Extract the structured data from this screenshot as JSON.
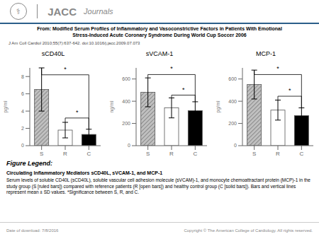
{
  "title": "From: Modified Serum Profiles of Inflammatory and Vasoconstrictive Factors in Patients With Emotional",
  "subtitle": "Stress-Induced Acute Coronary Syndrome During World Cup Soccer 2006",
  "color": "#2c5f8a",
  "annotations": [
    "J Am Coll Cardiol 2010;55(7):637-642. doi:10.1016/j.jacc.2009.07.073",
    "⚕",
    "JACC",
    "Journals",
    "Figure Legend:",
    "Circulating Inflammatory Mediators  sCD40L, sVCAM-1, and MCP-1",
    "Serum levels of soluble CD40L (sCD40L), soluble vascular cell adhesion molecule (sVCAM)-1, and monocyte chemoattractant protein (MCP)-1 in the study group (S [ruled bars]) compared with reference patients (R [open bars]) and healthy control group (C [solid bars]). Bars and vertical lines represent mean ± SD values. *Significance between S, R, and C.",
    "Date of download: 7/8/2016",
    "Copyright © The American College of Cardiology. All rights reserved."
  ],
  "chart_data": [
    {
      "type": "bar",
      "title": "sCD40L",
      "ylabel": "pg/ml",
      "categories": [
        "S",
        "R",
        "C"
      ],
      "values": [
        6.5,
        1.8,
        1.3
      ],
      "errors": [
        2.5,
        0.9,
        0.6
      ],
      "colors": [
        "#c0c0c0",
        "#ffffff",
        "#000000"
      ],
      "ylim": [
        0,
        9
      ],
      "yticks": [
        0,
        2,
        4,
        6,
        8
      ],
      "annotations": [
        {
          "x1": "S",
          "x2": "C",
          "y": 8.2,
          "label": "*"
        },
        {
          "x1": "R",
          "x2": "C",
          "y": 3.2,
          "label": "*"
        }
      ]
    },
    {
      "type": "bar",
      "title": "sVCAM-1",
      "ylabel": "ng/ml",
      "categories": [
        "S",
        "R",
        "C"
      ],
      "values": [
        480,
        340,
        315
      ],
      "errors": [
        130,
        90,
        80
      ],
      "colors": [
        "#c0c0c0",
        "#ffffff",
        "#000000"
      ],
      "ylim": [
        0,
        700
      ],
      "yticks": [
        0,
        200,
        400,
        600
      ],
      "annotations": [
        {
          "x1": "S",
          "x2": "C",
          "y": 640,
          "label": "*"
        },
        {
          "x1": "R",
          "x2": "C",
          "y": 455,
          "label": "*"
        }
      ]
    },
    {
      "type": "bar",
      "title": "MCP-1",
      "ylabel": "pg/ml",
      "categories": [
        "S",
        "R",
        "C"
      ],
      "values": [
        550,
        320,
        270
      ],
      "errors": [
        130,
        90,
        70
      ],
      "colors": [
        "#c0c0c0",
        "#ffffff",
        "#000000"
      ],
      "ylim": [
        0,
        700
      ],
      "yticks": [
        0,
        200,
        400,
        600
      ],
      "annotations": [
        {
          "x1": "R",
          "x2": "C",
          "y": 445,
          "label": "*"
        },
        {
          "x1": "S",
          "x2": "C",
          "y": 640,
          "label": "*"
        }
      ]
    }
  ]
}
